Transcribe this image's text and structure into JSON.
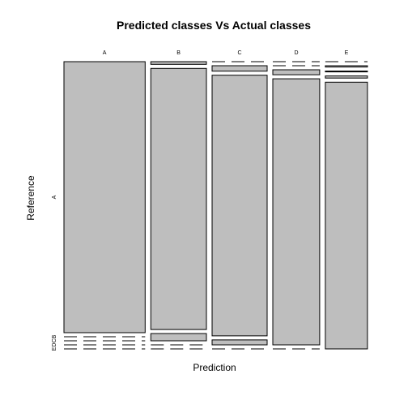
{
  "chart_data": {
    "type": "mosaic",
    "title": "Predicted classes Vs Actual classes",
    "xlabel": "Prediction",
    "ylabel": "Reference",
    "x_categories": [
      "A",
      "B",
      "C",
      "D",
      "E"
    ],
    "y_categories": [
      "A",
      "B",
      "C",
      "D",
      "E"
    ],
    "matrix_rows_reference": {
      "A": [
        0.99,
        0.01,
        0.0,
        0.0,
        0.0
      ],
      "B": [
        0.0,
        0.975,
        0.02,
        0.0,
        0.005
      ],
      "C": [
        0.0,
        0.027,
        0.952,
        0.018,
        0.003
      ],
      "D": [
        0.0,
        0.0,
        0.018,
        0.974,
        0.008
      ],
      "E": [
        0.0,
        0.0,
        0.0,
        0.0,
        1.0
      ]
    },
    "column_weights": [
      0.289,
      0.198,
      0.196,
      0.167,
      0.15
    ],
    "fill_color": "#bebebe",
    "edge_color": "#000000"
  }
}
